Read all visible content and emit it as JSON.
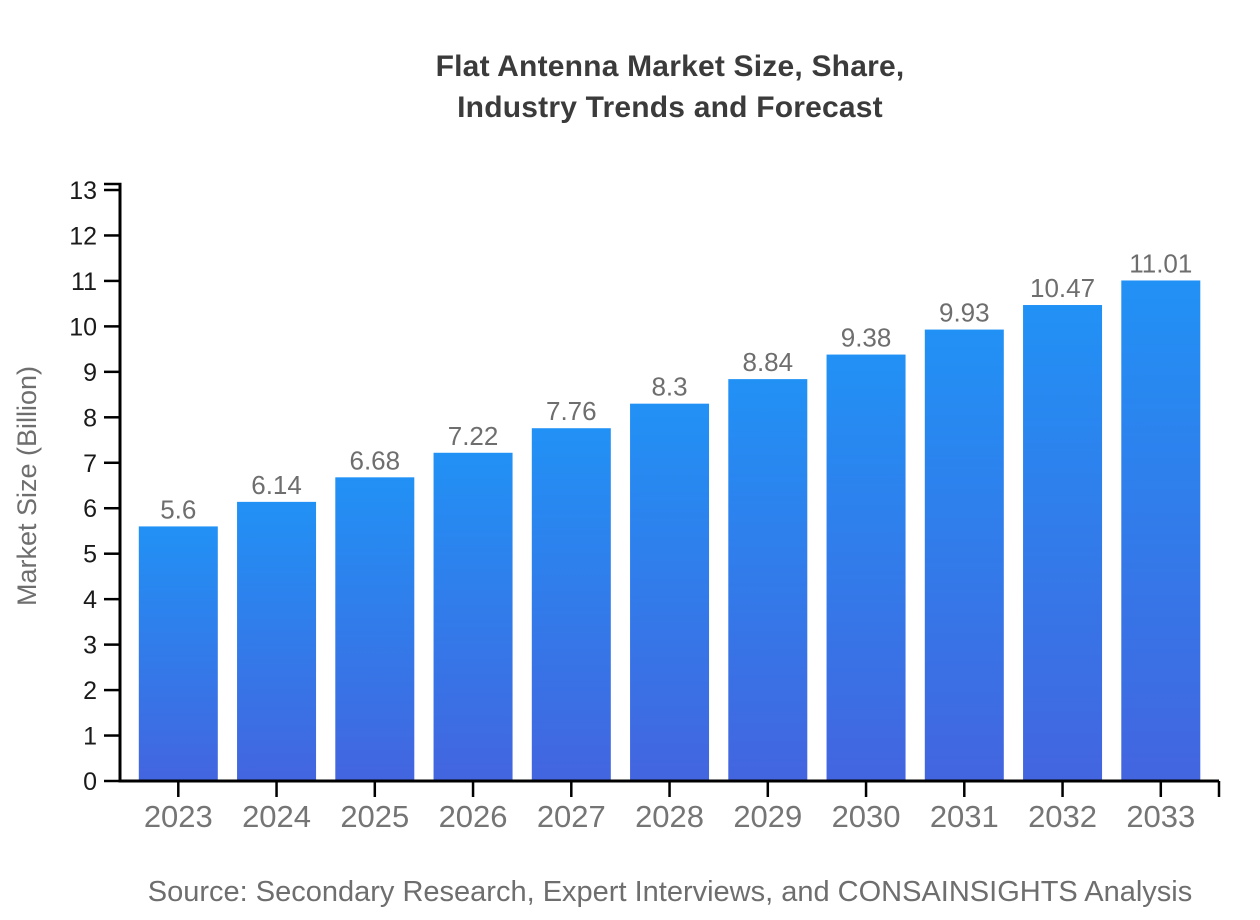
{
  "page": {
    "background_color": "#ffffff"
  },
  "chart_data": {
    "type": "bar",
    "title": "Flat Antenna Market Size, Share,\nIndustry Trends and Forecast",
    "categories": [
      "2023",
      "2024",
      "2025",
      "2026",
      "2027",
      "2028",
      "2029",
      "2030",
      "2031",
      "2032",
      "2033"
    ],
    "values": [
      5.6,
      6.14,
      6.68,
      7.22,
      7.76,
      8.3,
      8.84,
      9.38,
      9.93,
      10.47,
      11.01
    ],
    "value_labels": [
      "5.6",
      "6.14",
      "6.68",
      "7.22",
      "7.76",
      "8.3",
      "8.84",
      "9.38",
      "9.93",
      "10.47",
      "11.01"
    ],
    "xlabel": "",
    "ylabel": "Market Size (Billion)",
    "ylim": [
      0,
      13
    ],
    "ytick_step": 1,
    "yticks": [
      0,
      1,
      2,
      3,
      4,
      5,
      6,
      7,
      8,
      9,
      10,
      11,
      12,
      13
    ],
    "grid": false,
    "legend_position": "none",
    "source": "Source: Secondary Research, Expert Interviews, and CONSAINSIGHTS Analysis",
    "colors": {
      "bar_gradient_top": "#2191f5",
      "bar_gradient_bottom": "#4365df",
      "axis_line": "#000000",
      "ytick_label": "#1a1a1a",
      "category_label": "#757575",
      "value_label": "#6e6e6e",
      "title": "#3b3b3b",
      "source_text": "#6e6e6e"
    }
  }
}
